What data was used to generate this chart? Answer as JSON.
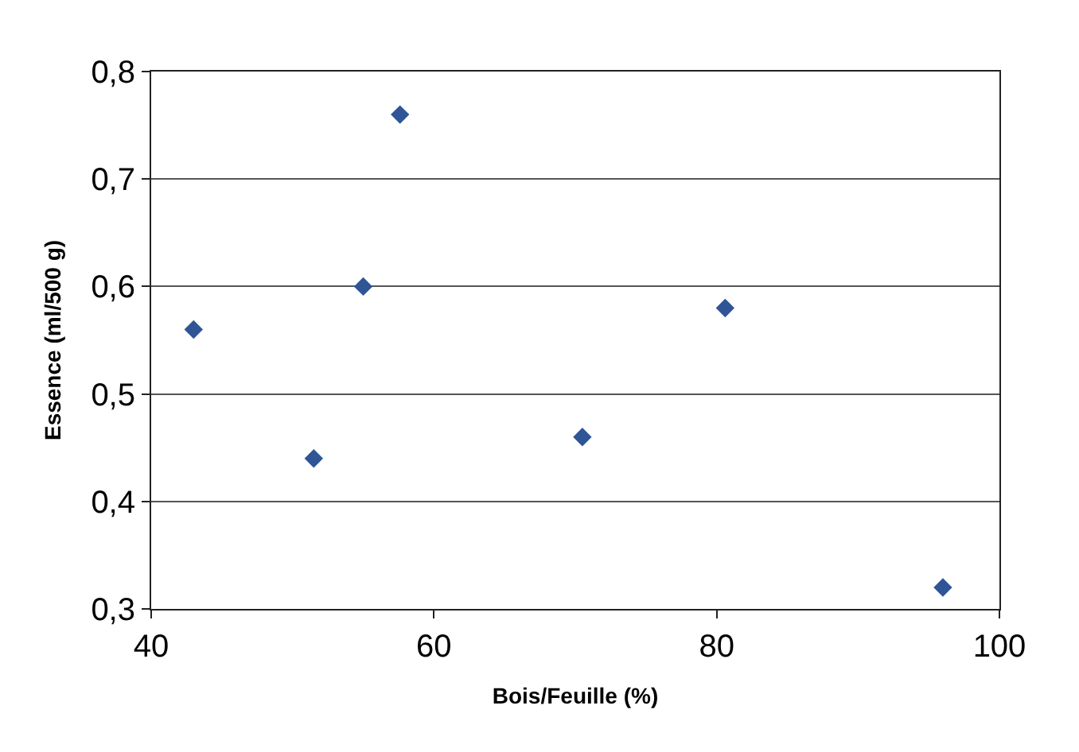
{
  "chart_data": {
    "type": "scatter",
    "xlabel": "Bois/Feuille (%)",
    "ylabel": "Essence (ml/500 g)",
    "x": [
      43.0,
      51.5,
      55.0,
      57.6,
      70.5,
      80.6,
      96.0
    ],
    "series": [
      {
        "color": "#2f5597",
        "values": [
          0.56,
          0.44,
          0.6,
          0.76,
          0.46,
          0.58,
          0.32
        ]
      }
    ],
    "xlim": [
      40,
      100
    ],
    "xticks": [
      40,
      60,
      80,
      100
    ],
    "ylim": [
      0.3,
      0.8
    ],
    "yticks": [
      {
        "value": 0.3,
        "label": "0,3"
      },
      {
        "value": 0.4,
        "label": "0,4"
      },
      {
        "value": 0.5,
        "label": "0,5"
      },
      {
        "value": 0.6,
        "label": "0,6"
      },
      {
        "value": 0.7,
        "label": "0,7"
      },
      {
        "value": 0.8,
        "label": "0,8"
      }
    ],
    "grid": "y",
    "marker": "diamond"
  }
}
